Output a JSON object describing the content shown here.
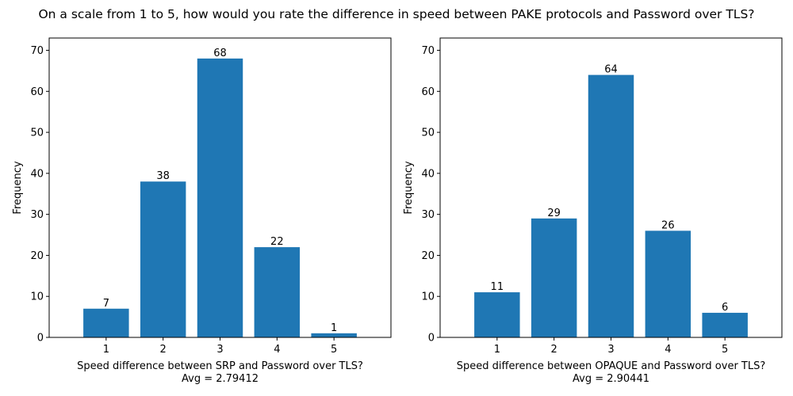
{
  "suptitle": "On a scale from 1 to 5, how would you rate the difference in speed between PAKE protocols and Password over TLS?",
  "colors": {
    "bar": "#1f77b4",
    "axis": "#000000",
    "background": "#ffffff"
  },
  "chart_data": [
    {
      "type": "bar",
      "categories": [
        "1",
        "2",
        "3",
        "4",
        "5"
      ],
      "values": [
        7,
        38,
        68,
        22,
        1
      ],
      "xlabel": "Speed difference between SRP and Password over TLS?",
      "xlabel_line2": "Avg = 2.79412",
      "ylabel": "Frequency",
      "xlim": [
        0,
        6
      ],
      "ylim": [
        0,
        73
      ],
      "yticks": [
        0,
        10,
        20,
        30,
        40,
        50,
        60,
        70
      ],
      "grid": false,
      "bar_labels": true
    },
    {
      "type": "bar",
      "categories": [
        "1",
        "2",
        "3",
        "4",
        "5"
      ],
      "values": [
        11,
        29,
        64,
        26,
        6
      ],
      "xlabel": "Speed difference between OPAQUE and Password over TLS?",
      "xlabel_line2": "Avg = 2.90441",
      "ylabel": "Frequency",
      "xlim": [
        0,
        6
      ],
      "ylim": [
        0,
        73
      ],
      "yticks": [
        0,
        10,
        20,
        30,
        40,
        50,
        60,
        70
      ],
      "grid": false,
      "bar_labels": true
    }
  ]
}
